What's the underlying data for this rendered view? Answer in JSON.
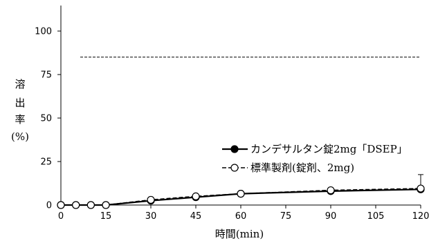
{
  "chart_data": {
    "type": "line",
    "title": "",
    "xlabel": "時間(min)",
    "ylabel_chars": [
      "溶",
      "出",
      "率",
      "(%)"
    ],
    "xlim": [
      0,
      120
    ],
    "ylim": [
      0,
      100
    ],
    "x_ticks": [
      "0",
      "15",
      "30",
      "45",
      "60",
      "75",
      "90",
      "105",
      "120"
    ],
    "y_ticks": [
      "0",
      "25",
      "50",
      "75",
      "100"
    ],
    "grid": false,
    "legend_position": "lower-right",
    "reference_line": {
      "y": 85,
      "style": "dashed"
    },
    "x": [
      0,
      5,
      10,
      15,
      30,
      45,
      60,
      90,
      120
    ],
    "series": [
      {
        "name": "カンデサルタン錠2mg「DSEP」",
        "line": "solid",
        "marker": "filled-circle",
        "values": [
          0,
          0,
          0,
          0,
          2.5,
          4.5,
          6.5,
          8.0,
          9.0
        ],
        "error_bar_upper_at_120": 17.5
      },
      {
        "name": "標準製剤(錠剤、2mg)",
        "line": "dashed",
        "marker": "open-circle",
        "values": [
          0,
          0,
          0,
          0,
          3.0,
          5.0,
          6.5,
          8.5,
          9.5
        ]
      }
    ]
  }
}
